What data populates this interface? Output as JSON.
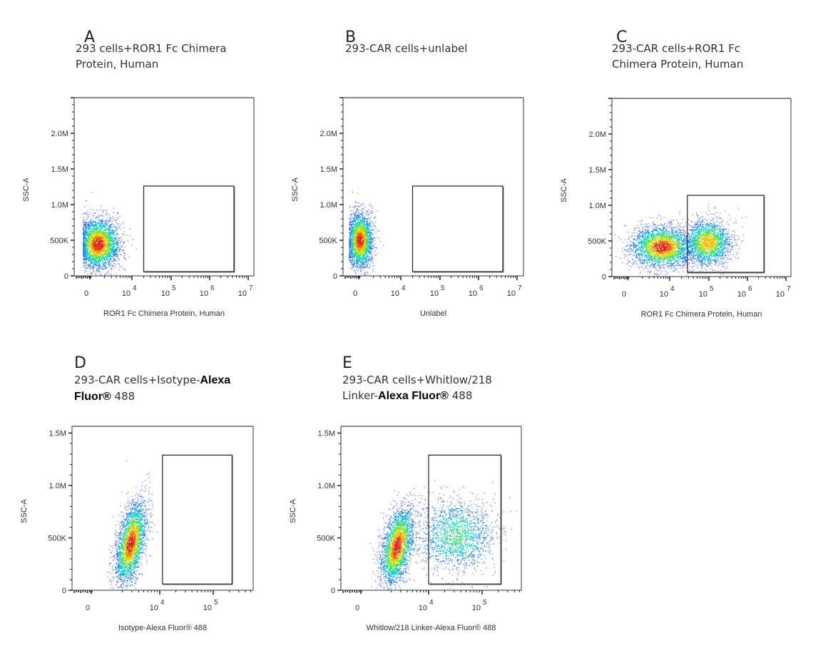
{
  "chart_data": [
    {
      "id": "A",
      "type": "scatter",
      "panel_letter": "A",
      "title_lines": [
        [
          "293 cells+ROR1 Fc Chimera"
        ],
        [
          "Protein, Human"
        ]
      ],
      "xlabel": "ROR1 Fc Chimera Protein, Human",
      "ylabel": "SSC-A",
      "x_scale": "biexponential",
      "x_ticks": [
        {
          "label": "0",
          "exp": ""
        },
        {
          "label": "10",
          "exp": "4"
        },
        {
          "label": "10",
          "exp": "5"
        },
        {
          "label": "10",
          "exp": "6"
        },
        {
          "label": "10",
          "exp": "7"
        }
      ],
      "y_ticks": [
        "0",
        "500K",
        "1.0M",
        "1.5M",
        "2.0M"
      ],
      "ylim": [
        0,
        2500000
      ],
      "gate": {
        "x_range_log": [
          4.3,
          6.6
        ],
        "y_range": [
          60000,
          1260000
        ]
      },
      "populations": [
        {
          "name": "negative",
          "x_center_log": 3.2,
          "y_center": 450000,
          "density": "high",
          "pct_in_gate": 0
        }
      ]
    },
    {
      "id": "B",
      "type": "scatter",
      "panel_letter": "B",
      "title_lines": [
        [
          "293-CAR cells+unlabel"
        ]
      ],
      "xlabel": "Unlabel",
      "ylabel": "SSC-A",
      "x_scale": "biexponential",
      "x_ticks": [
        {
          "label": "0",
          "exp": ""
        },
        {
          "label": "10",
          "exp": "4"
        },
        {
          "label": "10",
          "exp": "5"
        },
        {
          "label": "10",
          "exp": "6"
        },
        {
          "label": "10",
          "exp": "7"
        }
      ],
      "y_ticks": [
        "0",
        "500K",
        "1.0M",
        "1.5M",
        "2.0M"
      ],
      "ylim": [
        0,
        2500000
      ],
      "gate": {
        "x_range_log": [
          4.3,
          6.6
        ],
        "y_range": [
          60000,
          1260000
        ]
      },
      "populations": [
        {
          "name": "negative",
          "x_center_log": 2.5,
          "y_center": 500000,
          "density": "high",
          "pct_in_gate": 0
        }
      ]
    },
    {
      "id": "C",
      "type": "scatter",
      "panel_letter": "C",
      "title_lines": [
        [
          "293-CAR cells+ROR1 Fc"
        ],
        [
          "Chimera Protein, Human"
        ]
      ],
      "xlabel": "ROR1 Fc Chimera Protein, Human",
      "ylabel": "SSC-A",
      "x_scale": "biexponential",
      "x_ticks": [
        {
          "label": "0",
          "exp": ""
        },
        {
          "label": "10",
          "exp": "4"
        },
        {
          "label": "10",
          "exp": "5"
        },
        {
          "label": "10",
          "exp": "6"
        },
        {
          "label": "10",
          "exp": "7"
        }
      ],
      "y_ticks": [
        "0",
        "500K",
        "1.0M",
        "1.5M",
        "2.0M"
      ],
      "ylim": [
        0,
        2500000
      ],
      "gate": {
        "x_range_log": [
          4.45,
          6.4
        ],
        "y_range": [
          60000,
          1140000
        ]
      },
      "populations": [
        {
          "name": "negative",
          "x_center_log": 3.8,
          "y_center": 420000,
          "density": "high"
        },
        {
          "name": "positive",
          "x_center_log": 4.95,
          "y_center": 480000,
          "density": "medium"
        }
      ]
    },
    {
      "id": "D",
      "type": "scatter",
      "panel_letter": "D",
      "title_lines": [
        [
          "293-CAR cells+Isotype-",
          "Alexa"
        ],
        [
          "Fluor®",
          " 488"
        ]
      ],
      "xlabel": "Isotype-Alexa Fluor® 488",
      "ylabel": "SSC-A",
      "x_scale": "biexponential",
      "x_ticks": [
        {
          "label": "0",
          "exp": ""
        },
        {
          "label": "10",
          "exp": "4"
        },
        {
          "label": "10",
          "exp": "5"
        }
      ],
      "y_ticks": [
        "0",
        "500K",
        "1.0M",
        "1.5M"
      ],
      "ylim": [
        0,
        1700000
      ],
      "gate": {
        "x_range_log": [
          4.05,
          5.35
        ],
        "y_range": [
          60000,
          1290000
        ]
      },
      "populations": [
        {
          "name": "negative",
          "x_center_log": 3.45,
          "y_center": 450000,
          "density": "high",
          "pct_in_gate": 0
        }
      ]
    },
    {
      "id": "E",
      "type": "scatter",
      "panel_letter": "E",
      "title_lines": [
        [
          "293-CAR   cells+Whitlow/218"
        ],
        [
          "Linker-",
          "Alexa Fluor®",
          " 488"
        ]
      ],
      "xlabel": "Whitlow/218 Linker-Alexa Fluor® 488",
      "ylabel": "SSC-A",
      "x_scale": "biexponential",
      "x_ticks": [
        {
          "label": "0",
          "exp": ""
        },
        {
          "label": "10",
          "exp": "4"
        },
        {
          "label": "10",
          "exp": "5"
        }
      ],
      "y_ticks": [
        "0",
        "500K",
        "1.0M",
        "1.5M"
      ],
      "ylim": [
        0,
        1700000
      ],
      "gate": {
        "x_range_log": [
          4.0,
          5.35
        ],
        "y_range": [
          60000,
          1290000
        ]
      },
      "populations": [
        {
          "name": "negative",
          "x_center_log": 3.4,
          "y_center": 420000,
          "density": "high"
        },
        {
          "name": "positive",
          "x_center_log": 4.5,
          "y_center": 520000,
          "density": "low"
        }
      ]
    }
  ]
}
